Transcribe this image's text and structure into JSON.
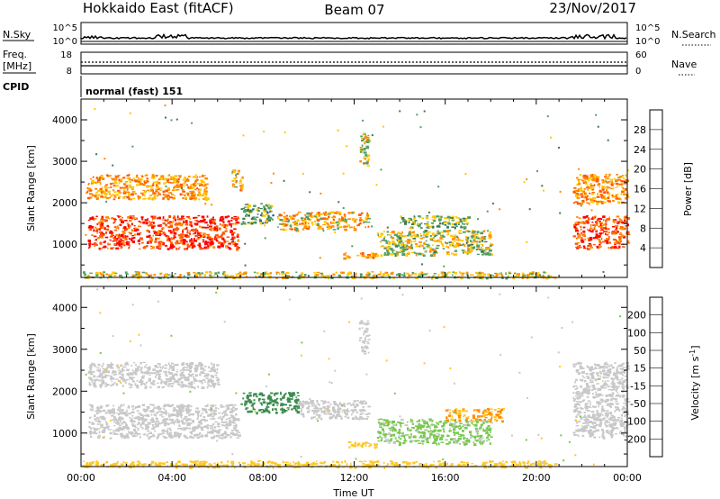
{
  "header": {
    "station": "Hokkaido East (fitACF)",
    "beam": "Beam 07",
    "date": "23/Nov/2017"
  },
  "noise_panel": {
    "left_label": "N.Sky",
    "right_label": "N.Search",
    "left_ticks": [
      "10^5",
      "10^0"
    ],
    "right_ticks": [
      "10^5",
      "10^0"
    ]
  },
  "freq_panel": {
    "left_label_top": "Freq.",
    "left_label_bottom": "[MHz]",
    "left_ticks": [
      "18",
      "8"
    ],
    "right_label": "Nave",
    "right_ticks": [
      "60",
      "0"
    ]
  },
  "cpid_panel": {
    "label": "CPID",
    "text": "normal (fast) 151"
  },
  "colors": {
    "power": [
      "#0000ff",
      "#2850a0",
      "#3c7850",
      "#50a064",
      "#ffc800",
      "#ff8c00",
      "#ff5a00",
      "#ff0000"
    ],
    "velocity": [
      "#ff0000",
      "#ff5000",
      "#ff8c00",
      "#ffc828",
      "#c8c8c8",
      "#78c850",
      "#3c8c50",
      "#2850a0",
      "#0000c8"
    ]
  },
  "chart_data": [
    {
      "type": "heatmap",
      "name": "power",
      "xlabel": "",
      "ylabel": "Slant Range [km]",
      "ylim": [
        200,
        4500
      ],
      "y_ticks": [
        "1000",
        "2000",
        "3000",
        "4000"
      ],
      "colorbar": {
        "label": "Power [dB]",
        "ticks": [
          "4",
          "8",
          "12",
          "16",
          "20",
          "24",
          "28"
        ],
        "range": [
          0,
          32
        ]
      },
      "regions": [
        {
          "t0": 0.3,
          "t1": 6.9,
          "r0": 900,
          "r1": 1700,
          "value": 28
        },
        {
          "t0": 0.2,
          "t1": 5.5,
          "r0": 2100,
          "r1": 2700,
          "value": 22
        },
        {
          "t0": 6.6,
          "t1": 7.1,
          "r0": 2300,
          "r1": 2800,
          "value": 20
        },
        {
          "t0": 7.0,
          "t1": 8.4,
          "r0": 1500,
          "r1": 2000,
          "value": 13
        },
        {
          "t0": 8.6,
          "t1": 12.6,
          "r0": 1350,
          "r1": 1800,
          "value": 20
        },
        {
          "t0": 12.2,
          "t1": 12.6,
          "r0": 2900,
          "r1": 3700,
          "value": 18
        },
        {
          "t0": 11.5,
          "t1": 13.0,
          "r0": 680,
          "r1": 820,
          "value": 22
        },
        {
          "t0": 13.0,
          "t1": 18.0,
          "r0": 750,
          "r1": 1350,
          "value": 17
        },
        {
          "t0": 14.0,
          "t1": 17.0,
          "r0": 1400,
          "r1": 1700,
          "value": 14
        },
        {
          "t0": 21.6,
          "t1": 24.0,
          "r0": 900,
          "r1": 1700,
          "value": 27
        },
        {
          "t0": 21.6,
          "t1": 24.0,
          "r0": 2000,
          "r1": 2700,
          "value": 22
        },
        {
          "t0": 0.0,
          "t1": 20.8,
          "r0": 200,
          "r1": 350,
          "value": 18
        }
      ]
    },
    {
      "type": "heatmap",
      "name": "velocity",
      "xlabel": "Time UT",
      "ylabel": "Slant Range [km]",
      "ylim": [
        200,
        4500
      ],
      "x_ticks": [
        "00:00",
        "04:00",
        "08:00",
        "12:00",
        "16:00",
        "20:00",
        "00:00"
      ],
      "xlim_hours": [
        0,
        24
      ],
      "y_ticks": [
        "1000",
        "2000",
        "3000",
        "4000"
      ],
      "colorbar": {
        "label": "Velocity [m s^-1]",
        "ticks": [
          "200",
          "100",
          "50",
          "15",
          "-15",
          "-50",
          "-100",
          "-200"
        ]
      },
      "regions": [
        {
          "t0": 0.3,
          "t1": 6.9,
          "r0": 900,
          "r1": 1700,
          "value": 0
        },
        {
          "t0": 0.2,
          "t1": 6.0,
          "r0": 2100,
          "r1": 2700,
          "value": 0
        },
        {
          "t0": 7.0,
          "t1": 9.5,
          "r0": 1500,
          "r1": 2000,
          "value": 75
        },
        {
          "t0": 9.5,
          "t1": 12.6,
          "r0": 1350,
          "r1": 1800,
          "value": 0
        },
        {
          "t0": 12.2,
          "t1": 12.6,
          "r0": 2900,
          "r1": 3700,
          "value": 0
        },
        {
          "t0": 11.5,
          "t1": 13.0,
          "r0": 680,
          "r1": 820,
          "value": -30
        },
        {
          "t0": 13.0,
          "t1": 18.0,
          "r0": 750,
          "r1": 1350,
          "value": 25
        },
        {
          "t0": 16.0,
          "t1": 18.5,
          "r0": 1300,
          "r1": 1600,
          "value": -50
        },
        {
          "t0": 21.6,
          "t1": 24.0,
          "r0": 900,
          "r1": 2700,
          "value": 0
        },
        {
          "t0": 0.0,
          "t1": 20.8,
          "r0": 200,
          "r1": 350,
          "value": -30
        }
      ]
    }
  ]
}
